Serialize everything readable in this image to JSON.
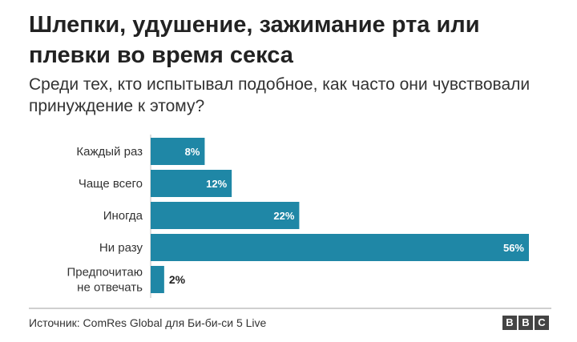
{
  "header": {
    "title": "Шлепки, удушение, зажимание рта или плевки во время секса",
    "subtitle": "Среди тех, кто испытывал подобное, как часто они чувствовали принуждение к этому?"
  },
  "chart_data": {
    "type": "bar",
    "orientation": "horizontal",
    "categories": [
      [
        "Каждый раз"
      ],
      [
        "Чаще всего"
      ],
      [
        "Иногда"
      ],
      [
        "Ни разу"
      ],
      [
        "Предпочитаю",
        "не отвечать"
      ]
    ],
    "values": [
      8,
      12,
      22,
      56,
      2
    ],
    "value_labels": [
      "8%",
      "12%",
      "22%",
      "56%",
      "2%"
    ],
    "bar_color": "#1f87a6",
    "xlim": [
      0,
      56
    ],
    "grid": false,
    "legend": "none"
  },
  "footer": {
    "source": "Источник: ComRes Global для Би-би-си 5 Live",
    "logo_letters": [
      "B",
      "B",
      "C"
    ]
  }
}
